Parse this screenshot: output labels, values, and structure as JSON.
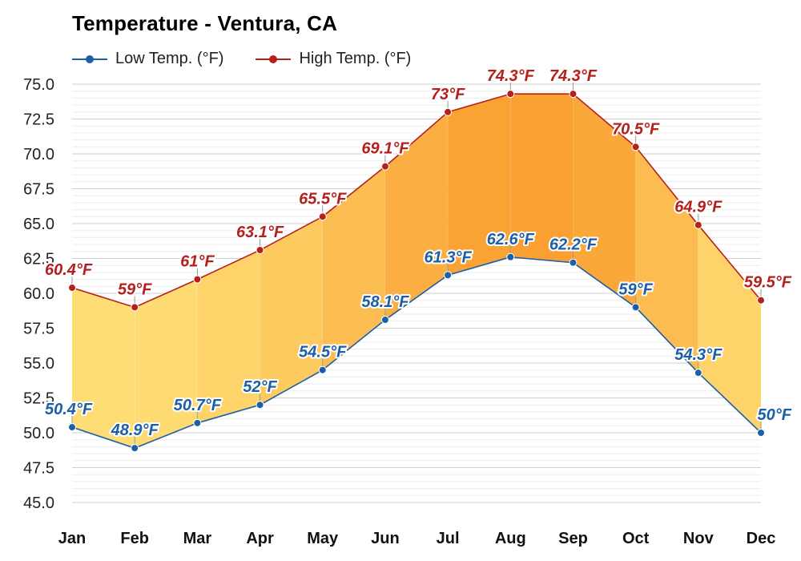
{
  "chart_data": {
    "type": "line",
    "title": "Temperature - Ventura, CA",
    "xlabel": "",
    "ylabel": "",
    "categories": [
      "Jan",
      "Feb",
      "Mar",
      "Apr",
      "May",
      "Jun",
      "Jul",
      "Aug",
      "Sep",
      "Oct",
      "Nov",
      "Dec"
    ],
    "ylim": [
      45.0,
      75.0
    ],
    "yticks": [
      "75.0",
      "72.5",
      "70.0",
      "67.5",
      "65.0",
      "62.5",
      "60.0",
      "57.5",
      "55.0",
      "52.5",
      "50.0",
      "47.5",
      "45.0"
    ],
    "grid": true,
    "legend_position": "top-left",
    "series": [
      {
        "name": "Low Temp. (°F)",
        "color": "#1a5fa8",
        "values": [
          50.4,
          48.9,
          50.7,
          52.0,
          54.5,
          58.1,
          61.3,
          62.6,
          62.2,
          59.0,
          54.3,
          50.0
        ],
        "labels": [
          "50.4°F",
          "48.9°F",
          "50.7°F",
          "52°F",
          "54.5°F",
          "58.1°F",
          "61.3°F",
          "62.6°F",
          "62.2°F",
          "59°F",
          "54.3°F",
          "50°F"
        ]
      },
      {
        "name": "High Temp. (°F)",
        "color": "#b5201d",
        "values": [
          60.4,
          59.0,
          61.0,
          63.1,
          65.5,
          69.1,
          73.0,
          74.3,
          74.3,
          70.5,
          64.9,
          59.5
        ],
        "labels": [
          "60.4°F",
          "59°F",
          "61°F",
          "63.1°F",
          "65.5°F",
          "69.1°F",
          "73°F",
          "74.3°F",
          "74.3°F",
          "70.5°F",
          "64.9°F",
          "59.5°F"
        ]
      }
    ]
  }
}
